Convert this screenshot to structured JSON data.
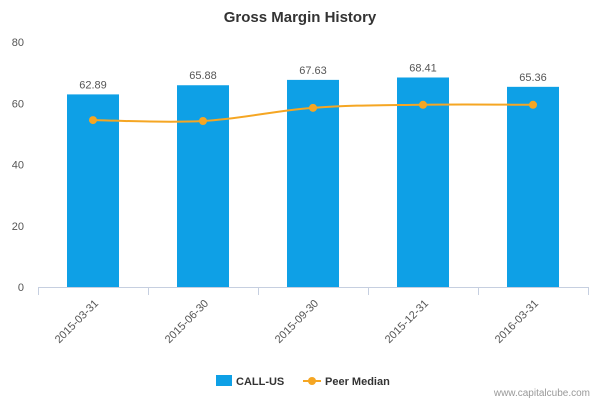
{
  "colors": {
    "bar": "#0ea0e6",
    "line": "#f5a623",
    "axis": "#c6cfe0",
    "grid": "#e6e6e6"
  },
  "chart_data": {
    "type": "bar",
    "title": "Gross Margin History",
    "categories": [
      "2015-03-31",
      "2015-06-30",
      "2015-09-30",
      "2015-12-31",
      "2016-03-31"
    ],
    "series": [
      {
        "name": "CALL-US",
        "kind": "bar",
        "values": [
          62.89,
          65.88,
          67.63,
          68.41,
          65.36
        ],
        "data_labels": [
          "62.89",
          "65.88",
          "67.63",
          "68.41",
          "65.36"
        ]
      },
      {
        "name": "Peer Median",
        "kind": "line",
        "values": [
          54.5,
          54.2,
          58.5,
          59.5,
          59.5
        ]
      }
    ],
    "ylim": [
      0,
      80
    ],
    "yticks": [
      "0",
      "20",
      "40",
      "60",
      "80"
    ],
    "grid": false,
    "legend": "bottom-center"
  },
  "credit": "www.capitalcube.com"
}
